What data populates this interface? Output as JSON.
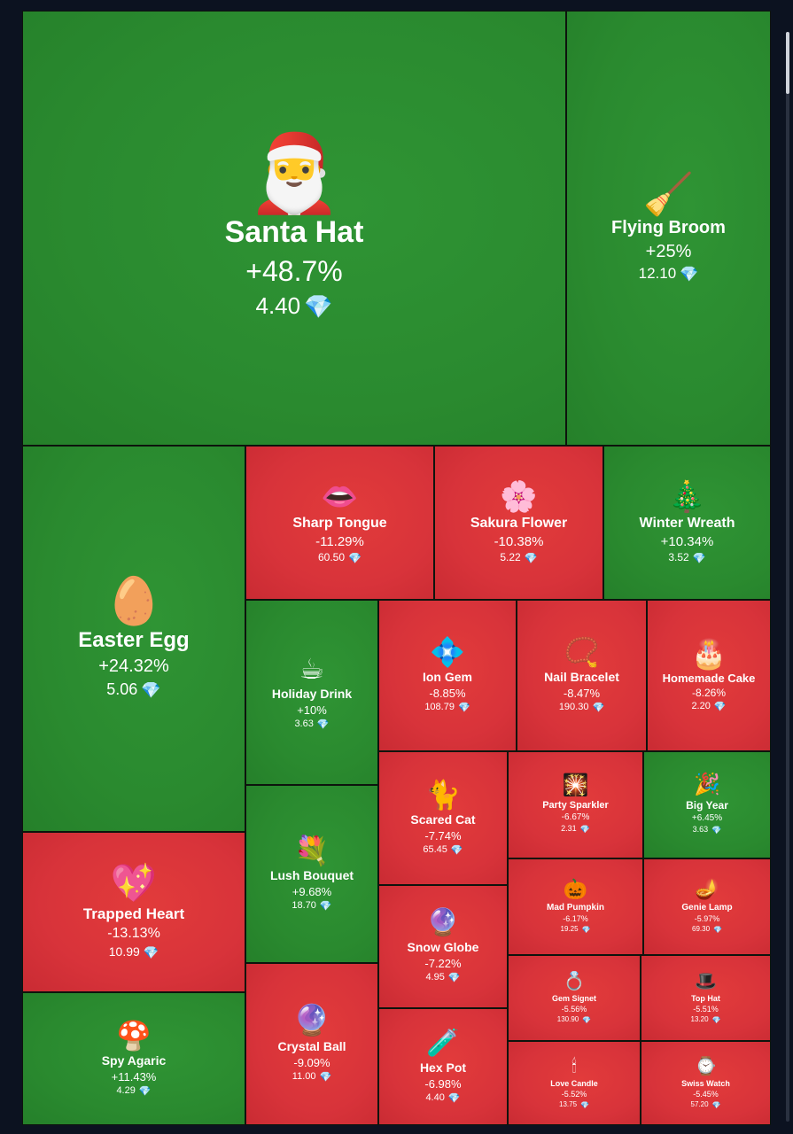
{
  "chart_data": {
    "type": "treemap",
    "currency_icon": "diamond-icon",
    "colors": {
      "positive": "#2a8a2f",
      "negative": "#d8333a"
    },
    "items": [
      {
        "name": "Santa Hat",
        "change": "+48.7%",
        "price": "4.40",
        "icon": "santa-hat-icon",
        "glyph": "🎅"
      },
      {
        "name": "Flying Broom",
        "change": "+25%",
        "price": "12.10",
        "icon": "broom-icon",
        "glyph": "🧹"
      },
      {
        "name": "Easter Egg",
        "change": "+24.32%",
        "price": "5.06",
        "icon": "easter-egg-icon",
        "glyph": "🥚"
      },
      {
        "name": "Sharp Tongue",
        "change": "-11.29%",
        "price": "60.50",
        "icon": "lips-icon",
        "glyph": "👄"
      },
      {
        "name": "Sakura Flower",
        "change": "-10.38%",
        "price": "5.22",
        "icon": "cherry-blossom-icon",
        "glyph": "🌸"
      },
      {
        "name": "Winter Wreath",
        "change": "+10.34%",
        "price": "3.52",
        "icon": "wreath-icon",
        "glyph": "🎄"
      },
      {
        "name": "Holiday Drink",
        "change": "+10%",
        "price": "3.63",
        "icon": "holiday-drink-icon",
        "glyph": "☕"
      },
      {
        "name": "Ion Gem",
        "change": "-8.85%",
        "price": "108.79",
        "icon": "ion-gem-icon",
        "glyph": "💠"
      },
      {
        "name": "Nail Bracelet",
        "change": "-8.47%",
        "price": "190.30",
        "icon": "bracelet-icon",
        "glyph": "📿"
      },
      {
        "name": "Homemade Cake",
        "change": "-8.26%",
        "price": "2.20",
        "icon": "cake-icon",
        "glyph": "🎂"
      },
      {
        "name": "Trapped Heart",
        "change": "-13.13%",
        "price": "10.99",
        "icon": "heart-icon",
        "glyph": "💖"
      },
      {
        "name": "Lush Bouquet",
        "change": "+9.68%",
        "price": "18.70",
        "icon": "bouquet-icon",
        "glyph": "💐"
      },
      {
        "name": "Scared Cat",
        "change": "-7.74%",
        "price": "65.45",
        "icon": "black-cat-icon",
        "glyph": "🐈"
      },
      {
        "name": "Party Sparkler",
        "change": "-6.67%",
        "price": "2.31",
        "icon": "sparkler-icon",
        "glyph": "🎇"
      },
      {
        "name": "Big Year",
        "change": "+6.45%",
        "price": "3.63",
        "icon": "big-year-icon",
        "glyph": "🎉"
      },
      {
        "name": "Mad Pumpkin",
        "change": "-6.17%",
        "price": "19.25",
        "icon": "pumpkin-icon",
        "glyph": "🎃"
      },
      {
        "name": "Genie Lamp",
        "change": "-5.97%",
        "price": "69.30",
        "icon": "genie-lamp-icon",
        "glyph": "🪔"
      },
      {
        "name": "Snow Globe",
        "change": "-7.22%",
        "price": "4.95",
        "icon": "snow-globe-icon",
        "glyph": "🔮"
      },
      {
        "name": "Gem Signet",
        "change": "-5.56%",
        "price": "130.90",
        "icon": "ring-icon",
        "glyph": "💍"
      },
      {
        "name": "Top Hat",
        "change": "-5.51%",
        "price": "13.20",
        "icon": "top-hat-icon",
        "glyph": "🎩"
      },
      {
        "name": "Spy Agaric",
        "change": "+11.43%",
        "price": "4.29",
        "icon": "mushroom-icon",
        "glyph": "🍄"
      },
      {
        "name": "Crystal Ball",
        "change": "-9.09%",
        "price": "11.00",
        "icon": "crystal-ball-icon",
        "glyph": "🔮"
      },
      {
        "name": "Hex Pot",
        "change": "-6.98%",
        "price": "4.40",
        "icon": "cauldron-icon",
        "glyph": "🧪"
      },
      {
        "name": "Love Candle",
        "change": "-5.52%",
        "price": "13.75",
        "icon": "candle-icon",
        "glyph": "🕯"
      },
      {
        "name": "Swiss Watch",
        "change": "-5.45%",
        "price": "57.20",
        "icon": "watch-icon",
        "glyph": "⌚"
      }
    ]
  }
}
